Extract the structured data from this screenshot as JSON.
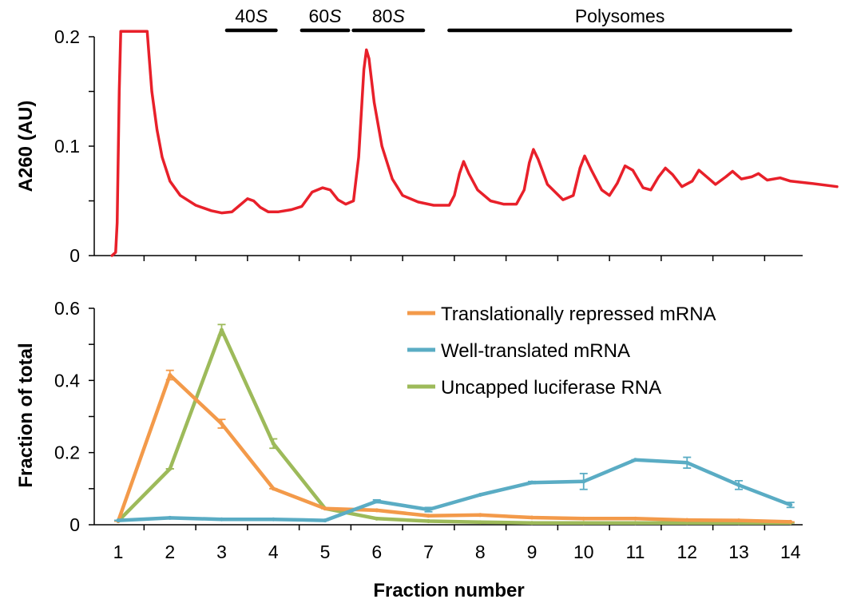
{
  "chart_data": [
    {
      "type": "line",
      "ylabel": "A260 (AU)",
      "ylim": [
        0,
        0.2
      ],
      "yticks": [
        "0",
        "0.1",
        "0.2"
      ],
      "line_color": "#e8202a",
      "bands": [
        {
          "label": "40",
          "italic": "S",
          "from": 3.1,
          "to": 4.05
        },
        {
          "label": "60",
          "italic": "S",
          "from": 4.55,
          "to": 5.45
        },
        {
          "label": "80",
          "italic": "S",
          "from": 5.55,
          "to": 6.9
        },
        {
          "label": "Polysomes",
          "italic": "",
          "from": 7.4,
          "to": 14.0
        }
      ],
      "profile": [
        [
          0.88,
          0
        ],
        [
          0.95,
          0.003
        ],
        [
          0.98,
          0.03
        ],
        [
          1.02,
          0.15
        ],
        [
          1.05,
          0.205
        ],
        [
          1.56,
          0.205
        ],
        [
          1.6,
          0.18
        ],
        [
          1.65,
          0.15
        ],
        [
          1.75,
          0.115
        ],
        [
          1.85,
          0.09
        ],
        [
          2.0,
          0.068
        ],
        [
          2.2,
          0.055
        ],
        [
          2.5,
          0.046
        ],
        [
          2.8,
          0.041
        ],
        [
          3.0,
          0.039
        ],
        [
          3.2,
          0.04
        ],
        [
          3.35,
          0.046
        ],
        [
          3.5,
          0.052
        ],
        [
          3.62,
          0.05
        ],
        [
          3.75,
          0.044
        ],
        [
          3.9,
          0.04
        ],
        [
          4.1,
          0.04
        ],
        [
          4.35,
          0.042
        ],
        [
          4.55,
          0.045
        ],
        [
          4.75,
          0.058
        ],
        [
          4.95,
          0.062
        ],
        [
          5.1,
          0.06
        ],
        [
          5.25,
          0.051
        ],
        [
          5.4,
          0.047
        ],
        [
          5.55,
          0.05
        ],
        [
          5.65,
          0.09
        ],
        [
          5.75,
          0.17
        ],
        [
          5.8,
          0.188
        ],
        [
          5.85,
          0.18
        ],
        [
          5.95,
          0.14
        ],
        [
          6.1,
          0.1
        ],
        [
          6.3,
          0.07
        ],
        [
          6.5,
          0.055
        ],
        [
          6.8,
          0.049
        ],
        [
          7.1,
          0.046
        ],
        [
          7.4,
          0.046
        ],
        [
          7.5,
          0.055
        ],
        [
          7.6,
          0.075
        ],
        [
          7.68,
          0.086
        ],
        [
          7.78,
          0.075
        ],
        [
          7.95,
          0.06
        ],
        [
          8.2,
          0.05
        ],
        [
          8.45,
          0.047
        ],
        [
          8.7,
          0.047
        ],
        [
          8.85,
          0.06
        ],
        [
          8.95,
          0.085
        ],
        [
          9.03,
          0.097
        ],
        [
          9.12,
          0.088
        ],
        [
          9.3,
          0.065
        ],
        [
          9.6,
          0.051
        ],
        [
          9.8,
          0.055
        ],
        [
          9.93,
          0.08
        ],
        [
          10.02,
          0.091
        ],
        [
          10.15,
          0.078
        ],
        [
          10.35,
          0.06
        ],
        [
          10.5,
          0.055
        ],
        [
          10.65,
          0.066
        ],
        [
          10.8,
          0.082
        ],
        [
          10.95,
          0.078
        ],
        [
          11.15,
          0.062
        ],
        [
          11.3,
          0.06
        ],
        [
          11.45,
          0.072
        ],
        [
          11.58,
          0.08
        ],
        [
          11.72,
          0.074
        ],
        [
          11.9,
          0.063
        ],
        [
          12.1,
          0.068
        ],
        [
          12.23,
          0.078
        ],
        [
          12.38,
          0.072
        ],
        [
          12.55,
          0.065
        ],
        [
          12.75,
          0.072
        ],
        [
          12.88,
          0.077
        ],
        [
          13.05,
          0.07
        ],
        [
          13.25,
          0.072
        ],
        [
          13.38,
          0.075
        ],
        [
          13.55,
          0.069
        ],
        [
          13.8,
          0.071
        ],
        [
          14.0,
          0.068
        ],
        [
          14.4,
          0.066
        ],
        [
          14.9,
          0.063
        ]
      ]
    },
    {
      "type": "line",
      "xlabel": "Fraction number",
      "ylabel": "Fraction of total",
      "ylim": [
        0,
        0.6
      ],
      "yticks": [
        "0",
        "0.2",
        "0.4",
        "0.6"
      ],
      "x": [
        1,
        2,
        3,
        4,
        5,
        6,
        7,
        8,
        9,
        10,
        11,
        12,
        13,
        14
      ],
      "legend_position": "top-right",
      "series": [
        {
          "name": "Translationally repressed mRNA",
          "color": "#f39a4a",
          "values": [
            0.01,
            0.415,
            0.28,
            0.1,
            0.045,
            0.04,
            0.025,
            0.027,
            0.02,
            0.017,
            0.017,
            0.013,
            0.012,
            0.008
          ],
          "errors": [
            0,
            0.013,
            0.012,
            0,
            0,
            0,
            0,
            0,
            0,
            0,
            0,
            0,
            0,
            0
          ]
        },
        {
          "name": "Well-translated mRNA",
          "color": "#5aacc4",
          "values": [
            0.012,
            0.019,
            0.015,
            0.015,
            0.012,
            0.065,
            0.042,
            0.083,
            0.117,
            0.12,
            0.18,
            0.172,
            0.11,
            0.055
          ],
          "errors": [
            0,
            0,
            0,
            0,
            0,
            0.004,
            0.006,
            0,
            0.003,
            0.022,
            0,
            0.015,
            0.012,
            0.007
          ]
        },
        {
          "name": "Uncapped luciferase RNA",
          "color": "#9dba5a",
          "values": [
            0.01,
            0.155,
            0.54,
            0.225,
            0.045,
            0.017,
            0.01,
            0.007,
            0.005,
            0.005,
            0.005,
            0.005,
            0.005,
            0.005
          ],
          "errors": [
            0,
            0,
            0.015,
            0.013,
            0,
            0,
            0,
            0,
            0,
            0,
            0,
            0,
            0,
            0
          ]
        }
      ]
    }
  ]
}
